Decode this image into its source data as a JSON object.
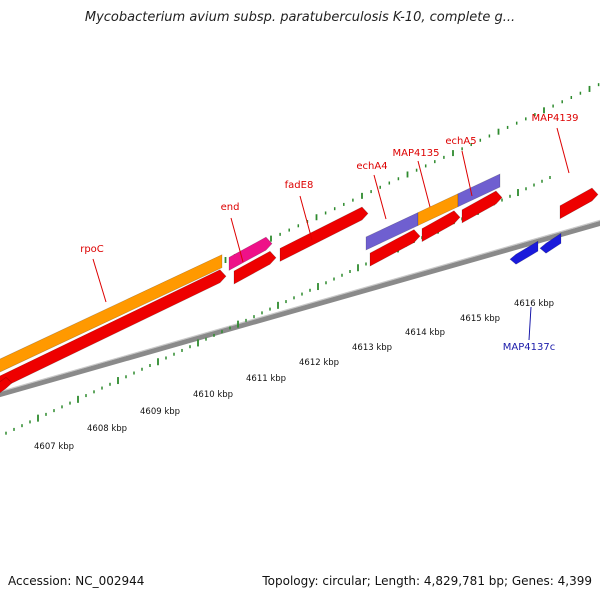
{
  "title": "Mycobacterium avium subsp. paratuberculosis K-10, complete g...",
  "footer": {
    "accession": "Accession: NC_002944",
    "summary": "Topology: circular; Length: 4,829,781 bp; Genes: 4,399"
  },
  "colors": {
    "backbone": "#8a8a8a",
    "tick": "#2e8b2e",
    "orange": "#ff9900",
    "red": "#ee0000",
    "pink": "#ee1188",
    "purple": "#6f5fd0",
    "blue": "#1a1adb",
    "label_red": "#dd0000",
    "label_blue": "#1a1aaa"
  },
  "scale_labels": [
    "4607 kbp",
    "4608 kbp",
    "4609 kbp",
    "4610 kbp",
    "4611 kbp",
    "4612 kbp",
    "4613 kbp",
    "4614 kbp",
    "4615 kbp",
    "4616 kbp"
  ],
  "gene_labels": [
    {
      "name": "rpoC",
      "color": "label_red"
    },
    {
      "name": "end",
      "color": "label_red"
    },
    {
      "name": "fadE8",
      "color": "label_red"
    },
    {
      "name": "echA4",
      "color": "label_red"
    },
    {
      "name": "MAP4135",
      "color": "label_red"
    },
    {
      "name": "echA5",
      "color": "label_red"
    },
    {
      "name": "MAP4139",
      "color": "label_red"
    },
    {
      "name": "MAP4137c",
      "color": "label_blue"
    }
  ]
}
